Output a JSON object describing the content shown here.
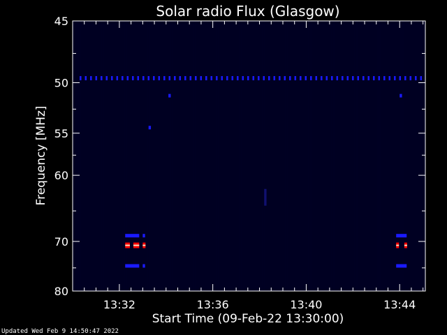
{
  "chart_data": {
    "type": "heatmap",
    "title": "Solar radio Flux (Glasgow)",
    "xlabel": "Start Time (09-Feb-22 13:30:00)",
    "ylabel": "Frequency [MHz]",
    "x_unit": "minutes after 13:30",
    "xlim": [
      0,
      15.1
    ],
    "ylim": [
      80,
      45
    ],
    "y_scale": "reciprocal",
    "x_ticks": [
      {
        "value": 2,
        "label": "13:32"
      },
      {
        "value": 6,
        "label": "13:36"
      },
      {
        "value": 10,
        "label": "13:40"
      },
      {
        "value": 14,
        "label": "13:44"
      }
    ],
    "y_ticks": [
      {
        "value": 45,
        "label": "45"
      },
      {
        "value": 50,
        "label": "50"
      },
      {
        "value": 55,
        "label": "55"
      },
      {
        "value": 60,
        "label": "60"
      },
      {
        "value": 70,
        "label": "70"
      },
      {
        "value": 80,
        "label": "80"
      }
    ],
    "background_color": "#000022",
    "colorscale": [
      "#000022",
      "#0000ff",
      "#ff0000",
      "#ffffff"
    ],
    "features": [
      {
        "x_start": 0.3,
        "x_end": 15.0,
        "y": 49.6,
        "intensity": 0.35,
        "pattern": "dashed"
      },
      {
        "x_start": 2.25,
        "x_end": 2.45,
        "y": 70.7,
        "intensity": 1.0
      },
      {
        "x_start": 2.6,
        "x_end": 2.85,
        "y": 70.7,
        "intensity": 1.0
      },
      {
        "x_start": 3.0,
        "x_end": 3.1,
        "y": 70.7,
        "intensity": 0.9
      },
      {
        "x_start": 13.85,
        "x_end": 13.95,
        "y": 70.7,
        "intensity": 0.9
      },
      {
        "x_start": 14.2,
        "x_end": 14.3,
        "y": 70.7,
        "intensity": 0.9
      },
      {
        "x_start": 2.25,
        "x_end": 2.85,
        "y": 69.0,
        "intensity": 0.4
      },
      {
        "x_start": 2.25,
        "x_end": 2.85,
        "y": 74.6,
        "intensity": 0.4
      },
      {
        "x_start": 3.0,
        "x_end": 3.1,
        "y": 69.0,
        "intensity": 0.35
      },
      {
        "x_start": 3.0,
        "x_end": 3.1,
        "y": 74.6,
        "intensity": 0.35
      },
      {
        "x_start": 13.85,
        "x_end": 14.3,
        "y": 69.0,
        "intensity": 0.35
      },
      {
        "x_start": 13.85,
        "x_end": 14.3,
        "y": 74.6,
        "intensity": 0.35
      },
      {
        "x_start": 4.1,
        "x_end": 4.2,
        "y": 51.2,
        "intensity": 0.4
      },
      {
        "x_start": 14.0,
        "x_end": 14.1,
        "y": 51.2,
        "intensity": 0.4
      },
      {
        "x_start": 3.25,
        "x_end": 3.35,
        "y": 54.4,
        "intensity": 0.3
      },
      {
        "x_start": 8.2,
        "x_end": 8.3,
        "y": 63.0,
        "intensity": 0.25
      }
    ]
  },
  "footer": {
    "updated": "Updated Wed Feb  9 14:50:47 2022"
  }
}
